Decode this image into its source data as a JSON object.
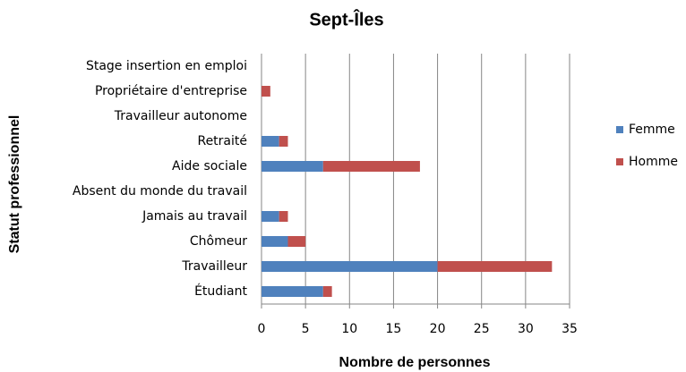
{
  "chart_data": {
    "type": "stacked_bar_horizontal",
    "title": "Sept-Îles",
    "x_label": "Nombre de personnes",
    "y_label": "Statut professionnel",
    "categories": [
      "Stage insertion en emploi",
      "Propriétaire d'entreprise",
      "Travailleur autonome",
      "Retraité",
      "Aide sociale",
      "Absent du monde du travail",
      "Jamais au travail",
      "Chômeur",
      "Travailleur",
      "Étudiant"
    ],
    "series": [
      {
        "name": "Femme",
        "color": "#4f81bd",
        "values": [
          0,
          0,
          0,
          2,
          7,
          0,
          2,
          3,
          20,
          7
        ]
      },
      {
        "name": "Homme",
        "color": "#c0504d",
        "values": [
          0,
          1,
          0,
          1,
          11,
          0,
          1,
          2,
          13,
          1
        ]
      }
    ],
    "xlim": [
      0,
      35
    ],
    "xticks": [
      0,
      5,
      10,
      15,
      20,
      25,
      30,
      35
    ],
    "grid": true,
    "legend": "right"
  }
}
